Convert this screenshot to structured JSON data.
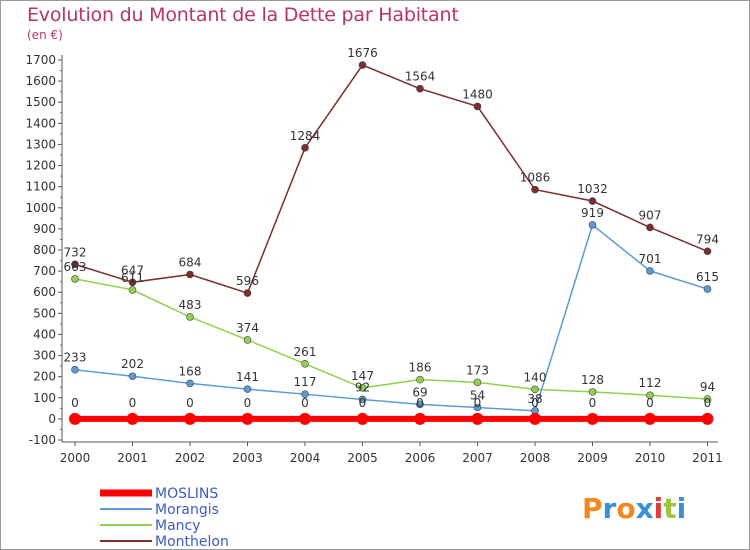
{
  "title": "Evolution du Montant de la Dette par Habitant",
  "unit": "(en €)",
  "brand": {
    "text": "Proxiti",
    "colors": [
      "#f08a1c",
      "#3a8fd6",
      "#f08a1c",
      "#3a8fd6",
      "#e23b3b",
      "#9bc53d",
      "#3a8fd6"
    ]
  },
  "chart_data": {
    "type": "line",
    "x": [
      "2000",
      "2001",
      "2002",
      "2003",
      "2004",
      "2005",
      "2006",
      "2007",
      "2008",
      "2009",
      "2010",
      "2011"
    ],
    "ylim": [
      -100,
      1700
    ],
    "yticks": [
      "-100",
      "0",
      "100",
      "200",
      "300",
      "400",
      "500",
      "600",
      "700",
      "800",
      "900",
      "1000",
      "1100",
      "1200",
      "1300",
      "1400",
      "1500",
      "1600",
      "1700"
    ],
    "grid": false,
    "legend": "bottom-left",
    "series": [
      {
        "name": "MOSLINS",
        "color": "#ff0000",
        "values": [
          0,
          0,
          0,
          0,
          0,
          0,
          0,
          0,
          0,
          0,
          0,
          0
        ],
        "labels": [
          "0",
          "0",
          "0",
          "0",
          "0",
          "0",
          "0",
          "0",
          "0",
          "0",
          "0",
          "0"
        ]
      },
      {
        "name": "Morangis",
        "color": "#5b9bd5",
        "values": [
          233,
          202,
          168,
          141,
          117,
          92,
          69,
          54,
          38,
          919,
          701,
          615
        ],
        "labels": [
          "233",
          "202",
          "168",
          "141",
          "117",
          "92",
          "69",
          "54",
          "38",
          "919",
          "701",
          "615"
        ]
      },
      {
        "name": "Mancy",
        "color": "#92d050",
        "values": [
          663,
          611,
          483,
          374,
          261,
          147,
          186,
          173,
          140,
          128,
          112,
          94
        ],
        "labels": [
          "663",
          "611",
          "483",
          "374",
          "261",
          "147",
          "186",
          "173",
          "140",
          "128",
          "112",
          "94"
        ]
      },
      {
        "name": "Monthelon",
        "color": "#7b2c2c",
        "values": [
          732,
          647,
          684,
          596,
          1284,
          1676,
          1564,
          1480,
          1086,
          1032,
          907,
          794
        ],
        "labels": [
          "732",
          "647",
          "684",
          "596",
          "1284",
          "1676",
          "1564",
          "1480",
          "1086",
          "1032",
          "907",
          "794"
        ]
      }
    ]
  }
}
